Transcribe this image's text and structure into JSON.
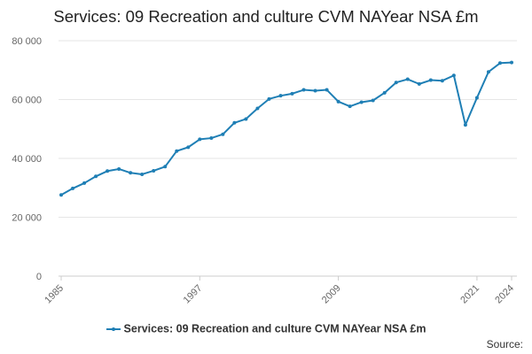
{
  "colors": {
    "series": "#1f7fb5",
    "grid": "#e6e6e6",
    "axis_text": "#666666"
  },
  "legend": {
    "label": "Services: 09 Recreation and culture CVM NAYear NSA £m"
  },
  "source": {
    "label": "Source:"
  },
  "chart_data": {
    "type": "line",
    "title": "Services: 09 Recreation and culture CVM NAYear NSA £m",
    "xlabel": "",
    "ylabel": "",
    "grid": true,
    "legend_position": "bottom",
    "xlim": [
      1985,
      2024
    ],
    "ylim": [
      0,
      80000
    ],
    "x_ticks": [
      1985,
      1997,
      2009,
      2021,
      2024
    ],
    "y_ticks": [
      0,
      20000,
      40000,
      60000,
      80000
    ],
    "y_tick_labels": [
      "0",
      "20 000",
      "40 000",
      "60 000",
      "80 000"
    ],
    "series": [
      {
        "name": "Services: 09 Recreation and culture CVM NAYear NSA £m",
        "x": [
          1985,
          1986,
          1987,
          1988,
          1989,
          1990,
          1991,
          1992,
          1993,
          1994,
          1995,
          1996,
          1997,
          1998,
          1999,
          2000,
          2001,
          2002,
          2003,
          2004,
          2005,
          2006,
          2007,
          2008,
          2009,
          2010,
          2011,
          2012,
          2013,
          2014,
          2015,
          2016,
          2017,
          2018,
          2019,
          2020,
          2021,
          2022,
          2023,
          2024
        ],
        "values": [
          27600,
          29800,
          31600,
          33900,
          35700,
          36400,
          35100,
          34600,
          35800,
          37200,
          42500,
          43800,
          46500,
          46900,
          48200,
          52100,
          53400,
          57000,
          60200,
          61300,
          62000,
          63300,
          63000,
          63300,
          59300,
          57700,
          59100,
          59700,
          62300,
          65800,
          66900,
          65300,
          66600,
          66400,
          68200,
          51400,
          60600,
          69400,
          72400,
          72600
        ]
      }
    ]
  }
}
